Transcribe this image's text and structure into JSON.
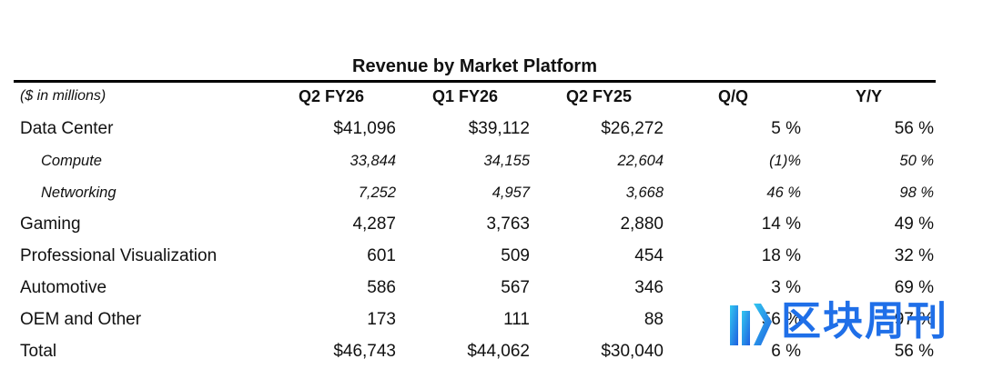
{
  "title": "Revenue by Market Platform",
  "header": {
    "label": "($ in millions)",
    "columns": [
      "Q2 FY26",
      "Q1 FY26",
      "Q2 FY25",
      "Q/Q",
      "Y/Y"
    ]
  },
  "rows": [
    {
      "label": "Data Center",
      "values": [
        "$41,096",
        "$39,112",
        "$26,272",
        "5 %",
        "56 %"
      ]
    },
    {
      "label": "Compute",
      "values": [
        "33,844",
        "34,155",
        "22,604",
        "(1)%",
        "50 %"
      ]
    },
    {
      "label": "Networking",
      "values": [
        "7,252",
        "4,957",
        "3,668",
        "46 %",
        "98 %"
      ]
    },
    {
      "label": "Gaming",
      "values": [
        "4,287",
        "3,763",
        "2,880",
        "14 %",
        "49 %"
      ]
    },
    {
      "label": "Professional Visualization",
      "values": [
        "601",
        "509",
        "454",
        "18 %",
        "32 %"
      ]
    },
    {
      "label": "Automotive",
      "values": [
        "586",
        "567",
        "346",
        "3 %",
        "69 %"
      ]
    },
    {
      "label": "OEM and Other",
      "values": [
        "173",
        "111",
        "88",
        "56 %",
        "97 %"
      ]
    },
    {
      "label": "Total",
      "values": [
        "$46,743",
        "$44,062",
        "$30,040",
        "6 %",
        "56 %"
      ]
    }
  ],
  "watermark": {
    "text": "区块周刊",
    "icon": "blockchain-weekly-logo-icon",
    "color": "#1f6fe8"
  }
}
